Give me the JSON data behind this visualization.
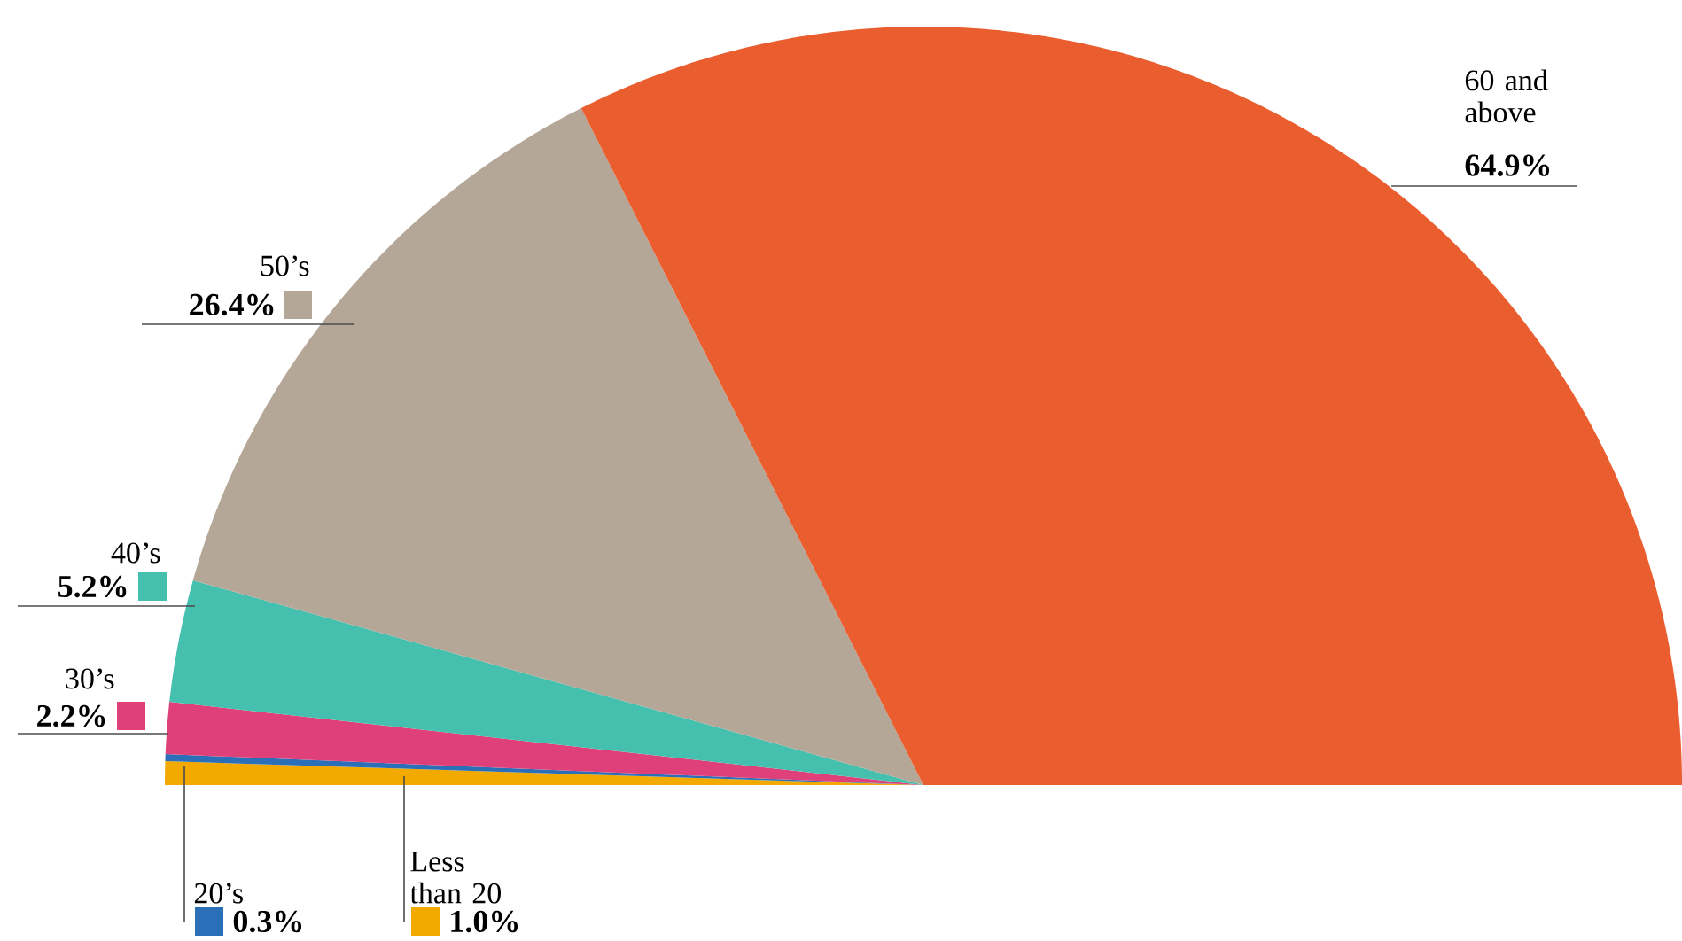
{
  "chart_data": {
    "type": "pie",
    "categories": [
      "Less than 20",
      "20’s",
      "30’s",
      "40’s",
      "50’s",
      "60 and above"
    ],
    "values": [
      1.0,
      0.3,
      2.2,
      5.2,
      26.4,
      64.9
    ],
    "colors": [
      "#f2a900",
      "#2a6fb7",
      "#e0407a",
      "#45bfae",
      "#b5a797",
      "#e95d2e"
    ],
    "value_labels": [
      "1.0%",
      "0.3%",
      "2.2%",
      "5.2%",
      "26.4%",
      "64.9%"
    ]
  }
}
